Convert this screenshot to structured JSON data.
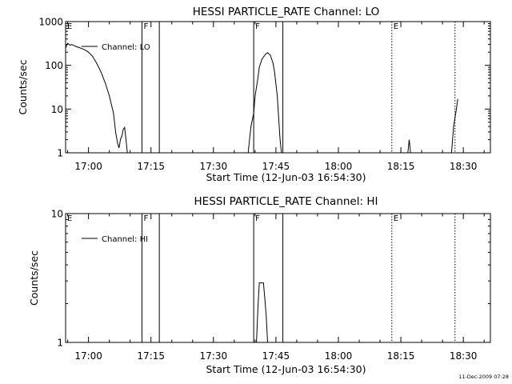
{
  "footer_timestamp": "11-Dec-2009 07:28",
  "chart_data": [
    {
      "type": "line",
      "title": "HESSI PARTICLE_RATE Channel: LO",
      "xlabel": "Start Time (12-Jun-03 16:54:30)",
      "ylabel": "Counts/sec",
      "y_scale": "log",
      "ylim": [
        1,
        1000
      ],
      "y_ticks": [
        {
          "value": 1,
          "label": "1"
        },
        {
          "value": 10,
          "label": "10"
        },
        {
          "value": 100,
          "label": "100"
        },
        {
          "value": 1000,
          "label": "1000"
        }
      ],
      "xlim": [
        "16:54:30",
        "18:36:30"
      ],
      "x_ticks": [
        "17:00",
        "17:15",
        "17:30",
        "17:45",
        "18:00",
        "18:15",
        "18:30"
      ],
      "legend": {
        "entry": "Channel: LO",
        "placement": "top-left"
      },
      "markers": [
        {
          "time": "16:54:30",
          "label": "E",
          "style": "solid"
        },
        {
          "time": "17:12:50",
          "label": "F",
          "style": "solid"
        },
        {
          "time": "17:17:00",
          "label": "",
          "style": "solid"
        },
        {
          "time": "17:39:40",
          "label": "F",
          "style": "solid"
        },
        {
          "time": "17:46:40",
          "label": "",
          "style": "solid"
        },
        {
          "time": "18:12:50",
          "label": "E",
          "style": "dotted"
        },
        {
          "time": "18:28:00",
          "label": "",
          "style": "dotted"
        }
      ],
      "series": [
        {
          "segments": [
            [
              [
                "16:54:30",
                250
              ],
              [
                "16:55:00",
                320
              ],
              [
                "16:55:30",
                290
              ],
              [
                "16:56:00",
                300
              ],
              [
                "16:57:00",
                270
              ],
              [
                "16:58:00",
                250
              ],
              [
                "16:59:00",
                230
              ],
              [
                "17:00:00",
                200
              ],
              [
                "17:01:00",
                160
              ],
              [
                "17:02:00",
                110
              ],
              [
                "17:03:00",
                70
              ],
              [
                "17:04:00",
                40
              ],
              [
                "17:05:00",
                20
              ],
              [
                "17:06:00",
                8
              ],
              [
                "17:06:30",
                3
              ],
              [
                "17:07:00",
                1.6
              ],
              [
                "17:07:20",
                1.3
              ],
              [
                "17:07:40",
                2
              ],
              [
                "17:08:00",
                2.4
              ],
              [
                "17:08:20",
                3.4
              ],
              [
                "17:08:40",
                3.8
              ],
              [
                "17:09:00",
                2
              ],
              [
                "17:09:20",
                1
              ]
            ],
            [
              [
                "17:38:20",
                1
              ],
              [
                "17:38:40",
                2
              ],
              [
                "17:39:00",
                4
              ],
              [
                "17:39:40",
                8
              ],
              [
                "17:40:00",
                20
              ],
              [
                "17:40:40",
                50
              ],
              [
                "17:41:00",
                90
              ],
              [
                "17:41:40",
                140
              ],
              [
                "17:42:30",
                180
              ],
              [
                "17:43:00",
                195
              ],
              [
                "17:43:40",
                170
              ],
              [
                "17:44:20",
                110
              ],
              [
                "17:44:40",
                70
              ],
              [
                "17:45:20",
                20
              ],
              [
                "17:45:40",
                6
              ],
              [
                "17:46:00",
                2
              ],
              [
                "17:46:20",
                1
              ]
            ],
            [
              [
                "18:16:40",
                1
              ],
              [
                "18:17:00",
                2
              ],
              [
                "18:17:20",
                1
              ]
            ],
            [
              [
                "18:27:10",
                1
              ],
              [
                "18:27:40",
                4
              ],
              [
                "18:28:20",
                10
              ],
              [
                "18:28:40",
                17
              ]
            ]
          ]
        }
      ]
    },
    {
      "type": "line",
      "title": "HESSI PARTICLE_RATE Channel: HI",
      "xlabel": "Start Time (12-Jun-03 16:54:30)",
      "ylabel": "Counts/sec",
      "y_scale": "log",
      "ylim": [
        1,
        10
      ],
      "y_ticks": [
        {
          "value": 1,
          "label": "1"
        },
        {
          "value": 10,
          "label": "10"
        }
      ],
      "xlim": [
        "16:54:30",
        "18:36:30"
      ],
      "x_ticks": [
        "17:00",
        "17:15",
        "17:30",
        "17:45",
        "18:00",
        "18:15",
        "18:30"
      ],
      "legend": {
        "entry": "Channel: HI",
        "placement": "top-left"
      },
      "markers": [
        {
          "time": "16:54:30",
          "label": "E",
          "style": "solid"
        },
        {
          "time": "17:12:50",
          "label": "F",
          "style": "solid"
        },
        {
          "time": "17:17:00",
          "label": "",
          "style": "solid"
        },
        {
          "time": "17:39:40",
          "label": "F",
          "style": "solid"
        },
        {
          "time": "17:46:40",
          "label": "",
          "style": "solid"
        },
        {
          "time": "18:12:50",
          "label": "E",
          "style": "dotted"
        },
        {
          "time": "18:28:00",
          "label": "",
          "style": "dotted"
        }
      ],
      "series": [
        {
          "segments": [
            [
              [
                "17:40:20",
                1
              ],
              [
                "17:40:40",
                1.8
              ],
              [
                "17:41:00",
                2.9
              ],
              [
                "17:42:00",
                2.9
              ],
              [
                "17:42:20",
                2.2
              ],
              [
                "17:42:40",
                1.6
              ],
              [
                "17:43:00",
                1
              ]
            ]
          ]
        }
      ]
    }
  ]
}
